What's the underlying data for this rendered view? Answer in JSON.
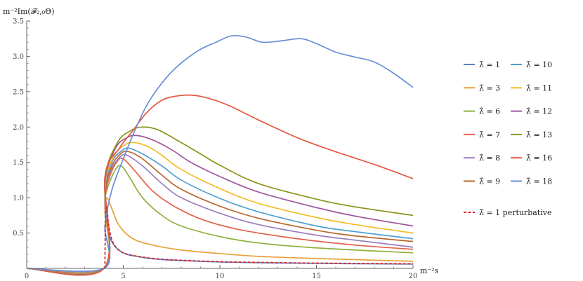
{
  "chart_data": {
    "type": "line",
    "title": "",
    "ylabel": "m⁻²Im(𝓕₂,₀Θ)",
    "xlabel": "m⁻²s",
    "xlim": [
      0,
      20
    ],
    "ylim": [
      0,
      3.5
    ],
    "x_ticks": [
      "0",
      "5",
      "10",
      "15",
      "20"
    ],
    "y_ticks": [
      "0.5",
      "1.0",
      "1.5",
      "2.0",
      "2.5",
      "3.0",
      "3.5"
    ],
    "grid": false,
    "legend_position": "right",
    "series": [
      {
        "name": "λ̃ = 1",
        "color": "#5e81c7",
        "points": [
          [
            0,
            0
          ],
          [
            4.0,
            0
          ],
          [
            4.05,
            0.55
          ],
          [
            4.15,
            0.65
          ],
          [
            4.4,
            0.38
          ],
          [
            5,
            0.22
          ],
          [
            6,
            0.155
          ],
          [
            7,
            0.125
          ],
          [
            8,
            0.11
          ],
          [
            10,
            0.09
          ],
          [
            12,
            0.08
          ],
          [
            15,
            0.07
          ],
          [
            20,
            0.06
          ]
        ]
      },
      {
        "name": "λ̃ = 3",
        "color": "#e8a03a",
        "points": [
          [
            0,
            0
          ],
          [
            4.0,
            0
          ],
          [
            4.05,
            0.8
          ],
          [
            4.15,
            1.0
          ],
          [
            4.4,
            0.85
          ],
          [
            4.8,
            0.6
          ],
          [
            5.5,
            0.42
          ],
          [
            6.5,
            0.33
          ],
          [
            8,
            0.26
          ],
          [
            10,
            0.21
          ],
          [
            12,
            0.17
          ],
          [
            15,
            0.14
          ],
          [
            20,
            0.1
          ]
        ]
      },
      {
        "name": "λ̃ = 6",
        "color": "#8fb03d",
        "points": [
          [
            0,
            0
          ],
          [
            4.0,
            0
          ],
          [
            4.05,
            0.9
          ],
          [
            4.2,
            1.15
          ],
          [
            4.6,
            1.4
          ],
          [
            4.9,
            1.45
          ],
          [
            5.3,
            1.3
          ],
          [
            6,
            1.0
          ],
          [
            7,
            0.75
          ],
          [
            8,
            0.6
          ],
          [
            10,
            0.45
          ],
          [
            12,
            0.36
          ],
          [
            15,
            0.29
          ],
          [
            20,
            0.22
          ]
        ]
      },
      {
        "name": "λ̃ = 7",
        "color": "#e2614a",
        "points": [
          [
            0,
            0
          ],
          [
            4.0,
            0
          ],
          [
            4.05,
            0.95
          ],
          [
            4.3,
            1.3
          ],
          [
            4.7,
            1.52
          ],
          [
            5.0,
            1.55
          ],
          [
            5.6,
            1.38
          ],
          [
            6.5,
            1.1
          ],
          [
            7.5,
            0.9
          ],
          [
            9,
            0.7
          ],
          [
            11,
            0.55
          ],
          [
            14,
            0.42
          ],
          [
            17,
            0.33
          ],
          [
            20,
            0.27
          ]
        ]
      },
      {
        "name": "λ̃ = 8",
        "color": "#9a7dc0",
        "points": [
          [
            0,
            0
          ],
          [
            4.0,
            0
          ],
          [
            4.05,
            1.0
          ],
          [
            4.3,
            1.35
          ],
          [
            4.8,
            1.57
          ],
          [
            5.2,
            1.6
          ],
          [
            6,
            1.45
          ],
          [
            7,
            1.2
          ],
          [
            8,
            1.0
          ],
          [
            10,
            0.78
          ],
          [
            12,
            0.62
          ],
          [
            15,
            0.47
          ],
          [
            17,
            0.4
          ],
          [
            20,
            0.3
          ]
        ]
      },
      {
        "name": "λ̃ = 9",
        "color": "#b8672c",
        "points": [
          [
            0,
            0
          ],
          [
            4.0,
            0
          ],
          [
            4.05,
            1.05
          ],
          [
            4.4,
            1.45
          ],
          [
            4.9,
            1.63
          ],
          [
            5.3,
            1.65
          ],
          [
            6,
            1.55
          ],
          [
            7,
            1.32
          ],
          [
            8,
            1.12
          ],
          [
            10,
            0.88
          ],
          [
            12,
            0.71
          ],
          [
            15,
            0.54
          ],
          [
            17,
            0.46
          ],
          [
            20,
            0.38
          ]
        ]
      },
      {
        "name": "λ̃ = 10",
        "color": "#4f9fd0",
        "points": [
          [
            0,
            0
          ],
          [
            4.0,
            0
          ],
          [
            4.05,
            1.1
          ],
          [
            4.4,
            1.5
          ],
          [
            4.9,
            1.66
          ],
          [
            5.3,
            1.7
          ],
          [
            6,
            1.62
          ],
          [
            7,
            1.45
          ],
          [
            8,
            1.25
          ],
          [
            10,
            0.99
          ],
          [
            12,
            0.8
          ],
          [
            15,
            0.6
          ],
          [
            17,
            0.52
          ],
          [
            20,
            0.42
          ]
        ]
      },
      {
        "name": "λ̃ = 11",
        "color": "#f5bc2a",
        "points": [
          [
            0,
            0
          ],
          [
            4.0,
            0
          ],
          [
            4.05,
            1.15
          ],
          [
            4.5,
            1.58
          ],
          [
            5.1,
            1.75
          ],
          [
            5.6,
            1.78
          ],
          [
            6.3,
            1.72
          ],
          [
            7,
            1.6
          ],
          [
            8,
            1.4
          ],
          [
            10,
            1.13
          ],
          [
            12,
            0.92
          ],
          [
            15,
            0.72
          ],
          [
            17,
            0.62
          ],
          [
            20,
            0.5
          ]
        ]
      },
      {
        "name": "λ̃ = 12",
        "color": "#a0579f",
        "points": [
          [
            0,
            0
          ],
          [
            4.0,
            0
          ],
          [
            4.05,
            1.2
          ],
          [
            4.6,
            1.7
          ],
          [
            5.2,
            1.85
          ],
          [
            5.7,
            1.88
          ],
          [
            6.5,
            1.82
          ],
          [
            7.5,
            1.68
          ],
          [
            8.5,
            1.5
          ],
          [
            10,
            1.3
          ],
          [
            12,
            1.08
          ],
          [
            15,
            0.86
          ],
          [
            17,
            0.74
          ],
          [
            20,
            0.6
          ]
        ]
      },
      {
        "name": "λ̃ = 13",
        "color": "#8c9419",
        "points": [
          [
            0,
            0
          ],
          [
            4.0,
            0
          ],
          [
            4.05,
            1.25
          ],
          [
            4.7,
            1.78
          ],
          [
            5.4,
            1.95
          ],
          [
            6.0,
            2.0
          ],
          [
            6.8,
            1.96
          ],
          [
            8,
            1.78
          ],
          [
            9,
            1.62
          ],
          [
            10,
            1.46
          ],
          [
            12,
            1.2
          ],
          [
            15,
            0.98
          ],
          [
            17,
            0.87
          ],
          [
            20,
            0.75
          ]
        ]
      },
      {
        "name": "λ̃ = 16",
        "color": "#e45840",
        "points": [
          [
            0,
            0
          ],
          [
            4.0,
            0
          ],
          [
            4.05,
            1.3
          ],
          [
            4.8,
            1.7
          ],
          [
            5.5,
            1.95
          ],
          [
            6.2,
            2.2
          ],
          [
            7,
            2.38
          ],
          [
            7.8,
            2.44
          ],
          [
            8.6,
            2.45
          ],
          [
            9.5,
            2.4
          ],
          [
            10.5,
            2.3
          ],
          [
            12,
            2.1
          ],
          [
            14,
            1.85
          ],
          [
            16,
            1.65
          ],
          [
            18,
            1.47
          ],
          [
            20,
            1.27
          ]
        ]
      },
      {
        "name": "λ̃ = 18",
        "color": "#6a8fd8",
        "points": [
          [
            0,
            0
          ],
          [
            4.0,
            0
          ],
          [
            4.05,
            0.6
          ],
          [
            4.4,
            1.1
          ],
          [
            5,
            1.55
          ],
          [
            5.6,
            1.95
          ],
          [
            6.2,
            2.3
          ],
          [
            6.8,
            2.55
          ],
          [
            7.5,
            2.78
          ],
          [
            8.2,
            2.95
          ],
          [
            9,
            3.1
          ],
          [
            9.8,
            3.2
          ],
          [
            10.6,
            3.29
          ],
          [
            11.4,
            3.27
          ],
          [
            12.2,
            3.2
          ],
          [
            13.2,
            3.22
          ],
          [
            14.2,
            3.25
          ],
          [
            15,
            3.18
          ],
          [
            16,
            3.06
          ],
          [
            17,
            2.99
          ],
          [
            18,
            2.92
          ],
          [
            19,
            2.76
          ],
          [
            20,
            2.56
          ]
        ]
      },
      {
        "name": "λ̃ = 1 perturbative",
        "color": "#d42a2a",
        "dashed": true,
        "points": [
          [
            4.05,
            0.0
          ],
          [
            4.08,
            0.7
          ],
          [
            4.15,
            0.86
          ],
          [
            4.25,
            0.6
          ],
          [
            4.5,
            0.35
          ],
          [
            5,
            0.22
          ],
          [
            6,
            0.16
          ],
          [
            7,
            0.13
          ],
          [
            8,
            0.115
          ],
          [
            10,
            0.095
          ],
          [
            12,
            0.085
          ],
          [
            15,
            0.075
          ],
          [
            20,
            0.065
          ]
        ]
      }
    ]
  }
}
